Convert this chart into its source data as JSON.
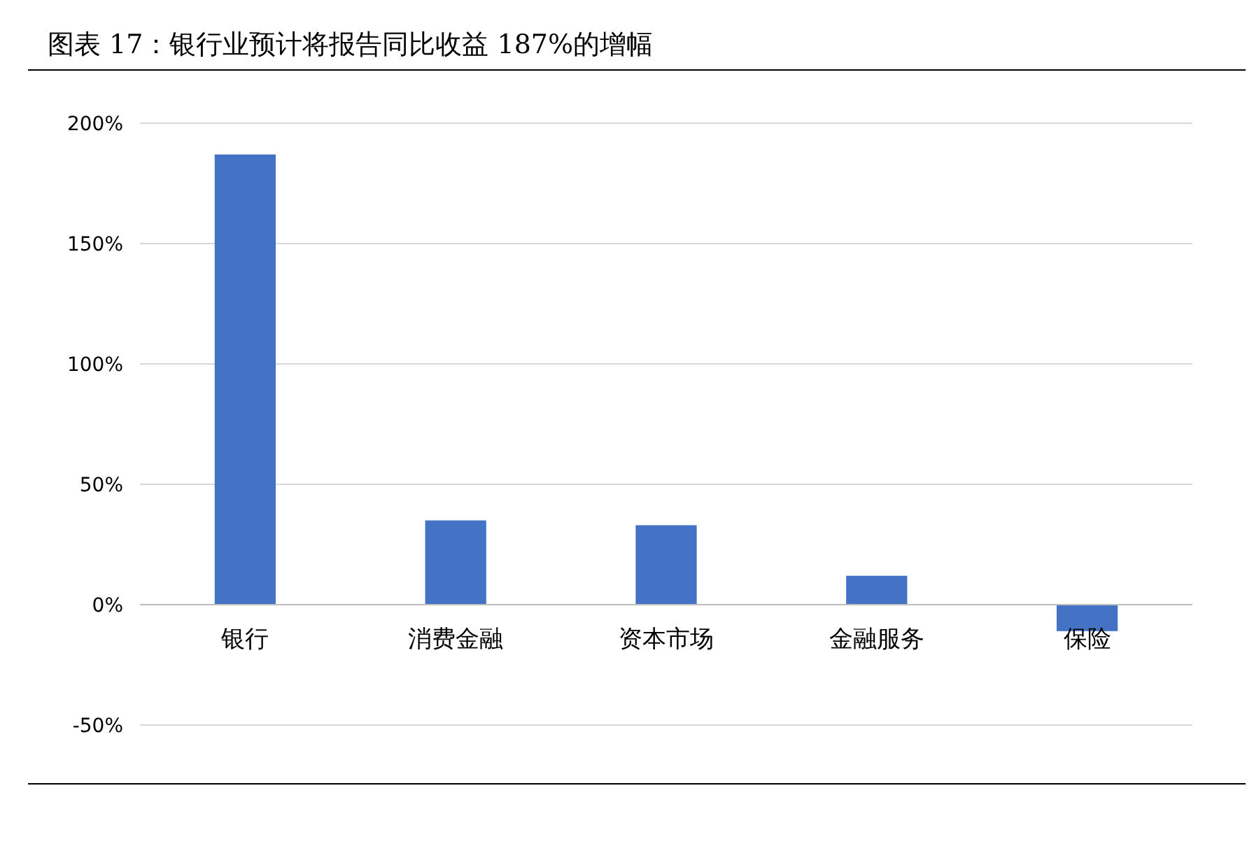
{
  "chart_data": {
    "type": "bar",
    "title": "图表 17：银行业预计将报告同比收益 187%的增幅",
    "categories": [
      "银行",
      "消费金融",
      "资本市场",
      "金融服务",
      "保险"
    ],
    "values": [
      187,
      35,
      33,
      12,
      -11
    ],
    "color": "#4472c4",
    "ylim": [
      -50,
      200
    ],
    "yticks": [
      {
        "value": -50,
        "label": "-50%"
      },
      {
        "value": 0,
        "label": "0%"
      },
      {
        "value": 50,
        "label": "50%"
      },
      {
        "value": 100,
        "label": "100%"
      },
      {
        "value": 150,
        "label": "150%"
      },
      {
        "value": 200,
        "label": "200%"
      }
    ],
    "grid": "y"
  }
}
